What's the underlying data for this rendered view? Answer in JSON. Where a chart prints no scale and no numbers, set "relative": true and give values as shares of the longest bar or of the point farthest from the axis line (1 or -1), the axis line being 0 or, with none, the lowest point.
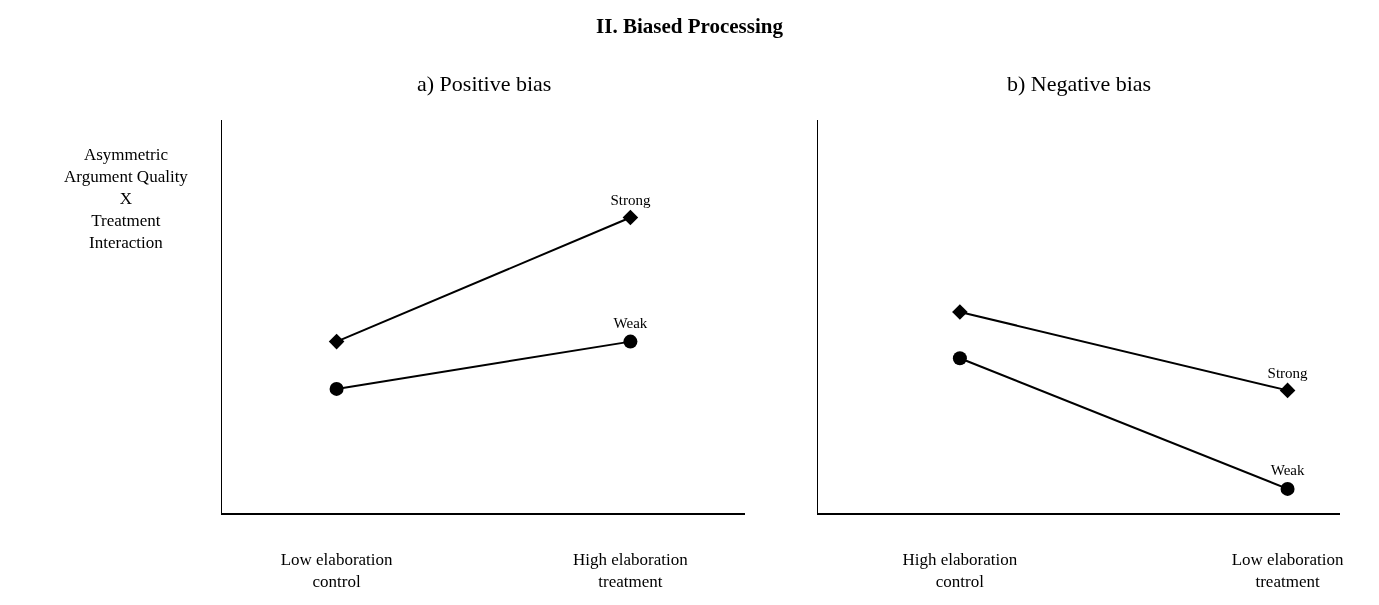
{
  "chart_data": [
    {
      "type": "line",
      "title": "a) Positive bias",
      "ylabel": "Asymmetric\nArgument Quality\nX\nTreatment\nInteraction",
      "annotations": [
        "II. Biased Processing"
      ],
      "relative": true,
      "categories": [
        "Low elaboration control",
        "High elaboration treatment"
      ],
      "line_style": "solid",
      "legend": false,
      "grid": false,
      "series": [
        {
          "name": "Strong",
          "color": "#000000",
          "marker": "diamond",
          "values": [
            0.58,
            1
          ]
        },
        {
          "name": "Weak",
          "color": "#000000",
          "marker": "circle",
          "values": [
            0.42,
            0.58
          ]
        }
      ]
    },
    {
      "type": "line",
      "title": "b) Negative bias",
      "relative": true,
      "categories": [
        "High elaboration control",
        "Low elaboration treatment"
      ],
      "line_style": "solid",
      "legend": false,
      "grid": false,
      "series": [
        {
          "name": "Strong",
          "color": "#000000",
          "marker": "diamond",
          "values": [
            1,
            0.61
          ]
        },
        {
          "name": "Weak",
          "color": "#000000",
          "marker": "circle",
          "values": [
            0.77,
            0.12
          ]
        }
      ]
    }
  ]
}
